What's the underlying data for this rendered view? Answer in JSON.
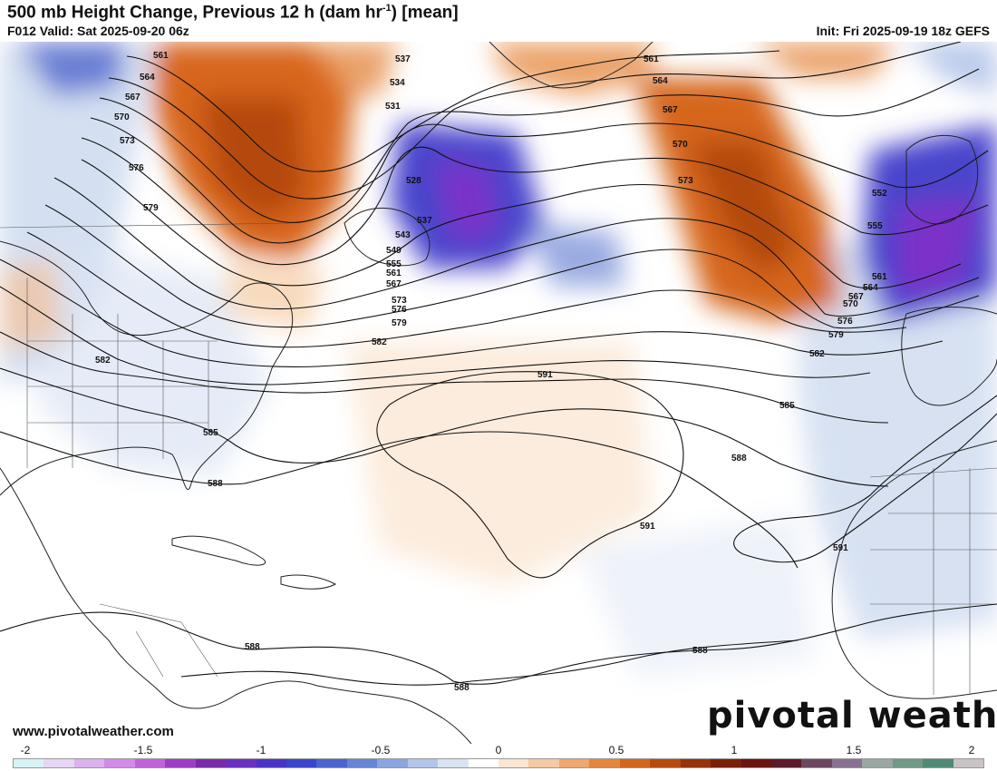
{
  "header": {
    "title": "500 mb Height Change, Previous 12 h (dam hr",
    "title_sup": "-1",
    "title_suffix": ") [mean]",
    "valid": "F012 Valid: Sat 2025-09-20 06z",
    "init": "Init: Fri 2025-09-19 18z GEFS"
  },
  "footer": {
    "website": "www.pivotalweather.com",
    "logo": "pivotal weather"
  },
  "colorbar": {
    "ticks": [
      "-2",
      "-1.5",
      "-1",
      "-0.5",
      "0",
      "0.5",
      "1",
      "1.5",
      "2"
    ],
    "colors": [
      "#d8f3f8",
      "#e6d6f3",
      "#dcb1ee",
      "#d28be6",
      "#bf63d9",
      "#9b3fc6",
      "#7a2aa8",
      "#6a2fc0",
      "#4a32c6",
      "#3a45cb",
      "#4a63d0",
      "#6585d6",
      "#8aa6df",
      "#b3c6ea",
      "#d9e3f3",
      "#ffffff",
      "#fbe6d3",
      "#f6c9a2",
      "#efa86d",
      "#e4863e",
      "#d4661c",
      "#b84a0e",
      "#96330a",
      "#7a2007",
      "#6b1410",
      "#5c1a2a",
      "#6d4760",
      "#8a7090",
      "#9aa7a2",
      "#6f9a86",
      "#4f8a74",
      "#c9c3c4"
    ]
  },
  "contour_labels": [
    "561",
    "564",
    "567",
    "570",
    "573",
    "576",
    "579",
    "582",
    "585",
    "588",
    "591",
    "537",
    "534",
    "531",
    "528",
    "537",
    "543",
    "549",
    "555",
    "561",
    "567",
    "573",
    "576",
    "579",
    "582",
    "561",
    "564",
    "567",
    "570",
    "573",
    "552",
    "555",
    "561",
    "564",
    "567",
    "570",
    "576",
    "579",
    "582",
    "585",
    "588",
    "591",
    "591",
    "588",
    "588",
    "588"
  ]
}
